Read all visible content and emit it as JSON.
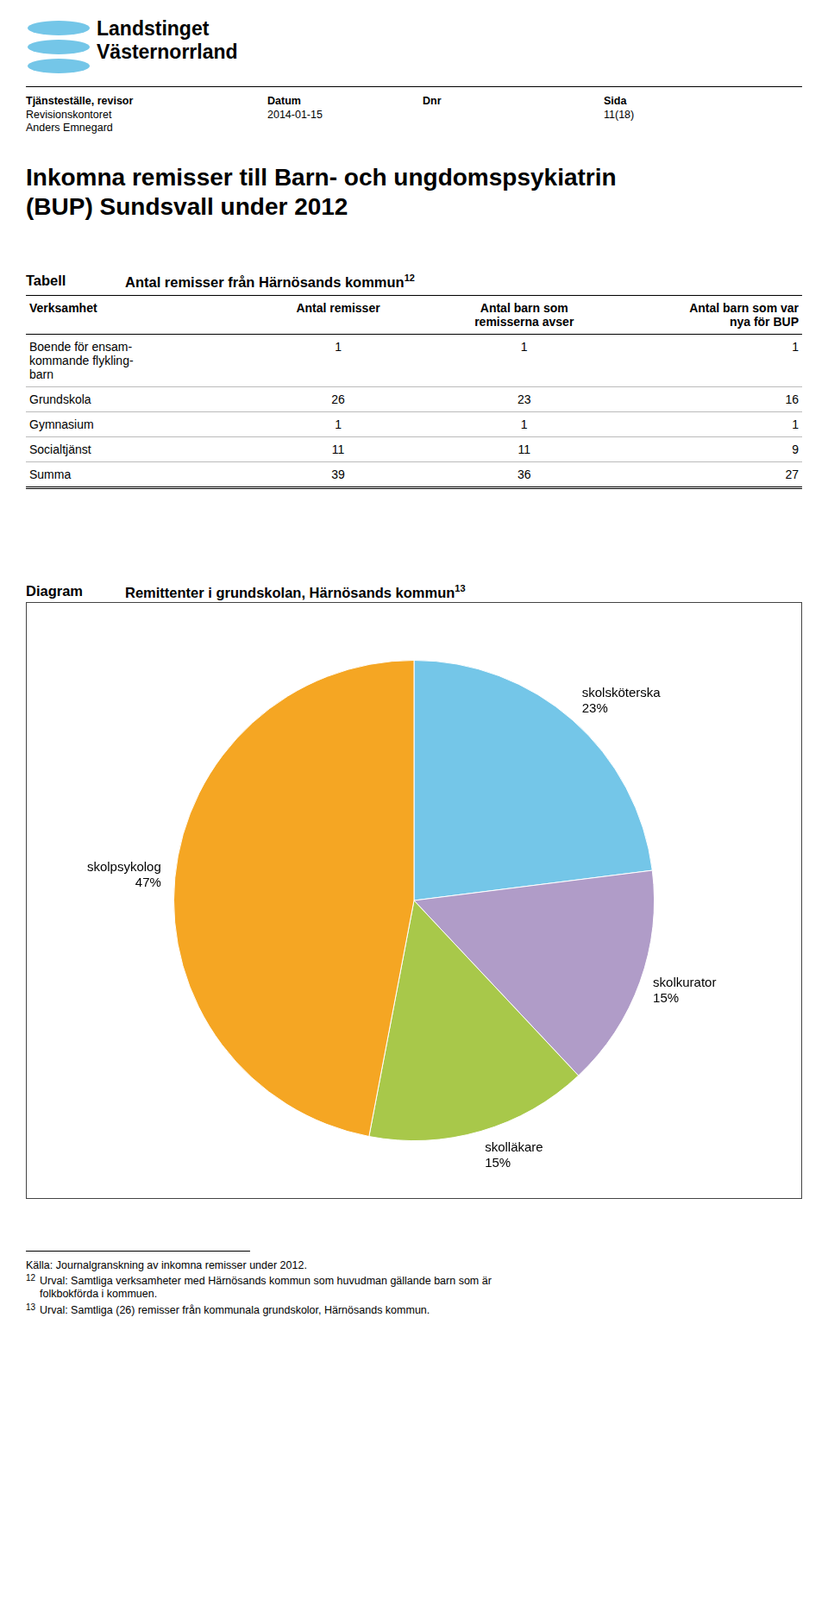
{
  "chart_data": {
    "type": "pie",
    "title": "Remittenter i grundskolan, Härnösands kommun",
    "categories": [
      "skolsköterska",
      "skolkurator",
      "skolläkare",
      "skolpsykolog"
    ],
    "values": [
      23,
      15,
      15,
      47
    ],
    "value_labels": [
      "23%",
      "15%",
      "15%",
      "47%"
    ],
    "colors": [
      "#74C6E8",
      "#B09CC8",
      "#A8C84A",
      "#F5A623"
    ],
    "data_labels": true
  },
  "page": {
    "logo_color": "#74C6E8",
    "logo_text": [
      "Landstinget",
      "Västernorrland"
    ],
    "header": [
      {
        "label": "Tjänsteställe, revisor",
        "lines": [
          "Revisionskontoret",
          "Anders Emnegard"
        ]
      },
      {
        "label": "Datum",
        "lines": [
          "2014-01-15"
        ]
      },
      {
        "label": "Dnr",
        "lines": []
      },
      {
        "label": "Sida",
        "lines": [
          "11(18)"
        ]
      }
    ],
    "title": [
      "Inkomna remisser till Barn- och ungdomspsykiatrin",
      "(BUP) Sundsvall under 2012"
    ],
    "table": {
      "label": "Tabell",
      "title": "Antal remisser från Härnösands kommun",
      "superscript": "12",
      "columns": [
        "Verksamhet",
        "Antal remisser",
        "Antal barn som\nremisserna avser",
        "Antal barn som var\nnya för BUP"
      ],
      "rows": [
        [
          "Boende för ensam-\nkommande flykling-\nbarn",
          1,
          1,
          1
        ],
        [
          "Grundskola",
          26,
          23,
          16
        ],
        [
          "Gymnasium",
          1,
          1,
          1
        ],
        [
          "Socialtjänst",
          11,
          11,
          9
        ],
        [
          "Summa",
          39,
          36,
          27
        ]
      ]
    },
    "diagram_label": "Diagram",
    "diagram_superscript": "13",
    "source": "Källa: Journalgranskning av inkomna remisser under 2012.",
    "footnotes": [
      {
        "mark": "12",
        "lines": [
          "Urval: Samtliga verksamheter med Härnösands kommun som huvudman gällande barn som är",
          "folkbokförda i kommuen."
        ]
      },
      {
        "mark": "13",
        "lines": [
          "Urval: Samtliga (26) remisser från kommunala grundskolor, Härnösands kommun."
        ]
      }
    ]
  }
}
